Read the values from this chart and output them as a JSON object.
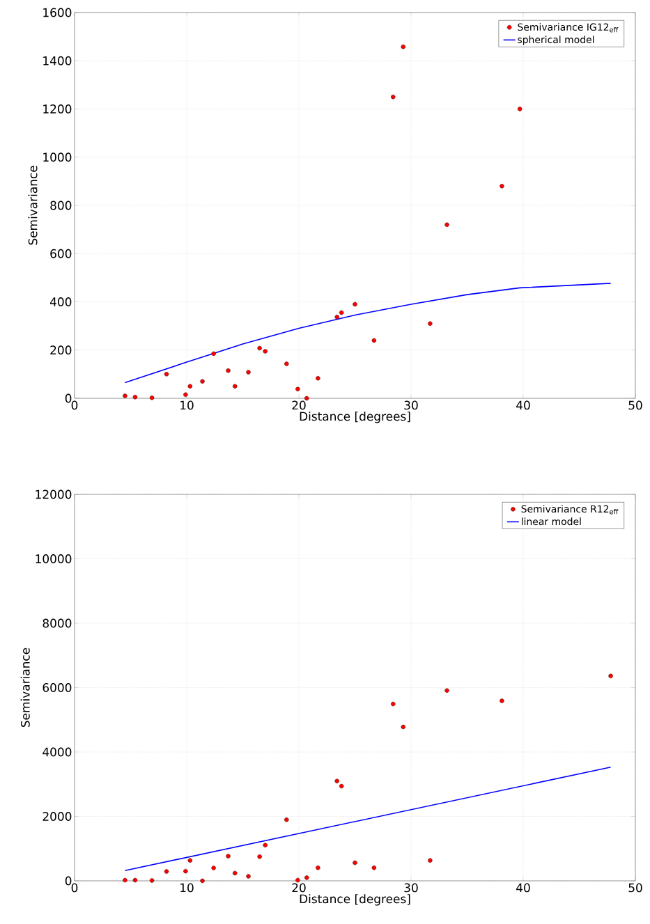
{
  "chart_data": [
    {
      "type": "scatter",
      "xlabel": "Distance [degrees]",
      "ylabel": "Semivariance",
      "xlim": [
        0,
        50
      ],
      "ylim": [
        0,
        1600
      ],
      "xticks": [
        0,
        10,
        20,
        30,
        40,
        50
      ],
      "yticks": [
        0,
        200,
        400,
        600,
        800,
        1000,
        1200,
        1400,
        1600
      ],
      "grid": true,
      "legend": "top right",
      "series": [
        {
          "name": "Semivariance IG12$_{eff}$",
          "marker": "circle",
          "color": "#ff0000",
          "x": [
            4.5,
            5.4,
            6.9,
            8.2,
            9.9,
            10.3,
            11.4,
            12.4,
            13.7,
            14.3,
            15.5,
            16.5,
            17.0,
            18.9,
            19.9,
            20.7,
            21.7,
            23.4,
            23.8,
            25.0,
            26.7,
            28.4,
            29.3,
            31.7,
            33.2,
            38.1,
            39.7
          ],
          "values": [
            10,
            5,
            2,
            100,
            15,
            50,
            70,
            185,
            115,
            50,
            108,
            208,
            195,
            143,
            38,
            0,
            83,
            337,
            355,
            390,
            240,
            1250,
            1458,
            310,
            720,
            880,
            1200
          ]
        },
        {
          "name": "spherical model",
          "type": "line",
          "marker": "none",
          "color": "#0000ff",
          "x": [
            4.5,
            10,
            15,
            20,
            25,
            30,
            35,
            39.7,
            47.8
          ],
          "values": [
            65,
            150,
            225,
            290,
            345,
            390,
            430,
            458,
            477
          ]
        }
      ]
    },
    {
      "type": "scatter",
      "xlabel": "Distance [degrees]",
      "ylabel": "Semivariance",
      "xlim": [
        0,
        50
      ],
      "ylim": [
        0,
        12000
      ],
      "xticks": [
        0,
        10,
        20,
        30,
        40,
        50
      ],
      "yticks": [
        0,
        2000,
        4000,
        6000,
        8000,
        10000,
        12000
      ],
      "grid": true,
      "legend": "top right",
      "series": [
        {
          "name": "Semivariance R12$_{eff}$",
          "marker": "circle",
          "color": "#ff0000",
          "x": [
            4.5,
            5.4,
            6.9,
            8.2,
            9.9,
            10.3,
            11.4,
            12.4,
            13.7,
            14.3,
            15.5,
            16.5,
            17.0,
            18.9,
            19.9,
            20.7,
            21.7,
            23.4,
            23.8,
            25.0,
            26.7,
            28.4,
            29.3,
            31.7,
            33.2,
            38.1,
            47.8
          ],
          "values": [
            20,
            20,
            10,
            290,
            300,
            635,
            0,
            400,
            765,
            240,
            140,
            750,
            1110,
            1900,
            20,
            100,
            405,
            3100,
            2940,
            560,
            405,
            5490,
            4780,
            635,
            5910,
            5590,
            6360
          ]
        },
        {
          "name": "linear model",
          "type": "line",
          "marker": "none",
          "color": "#0000ff",
          "x": [
            4.5,
            47.8
          ],
          "values": [
            320,
            3530
          ]
        }
      ]
    }
  ]
}
